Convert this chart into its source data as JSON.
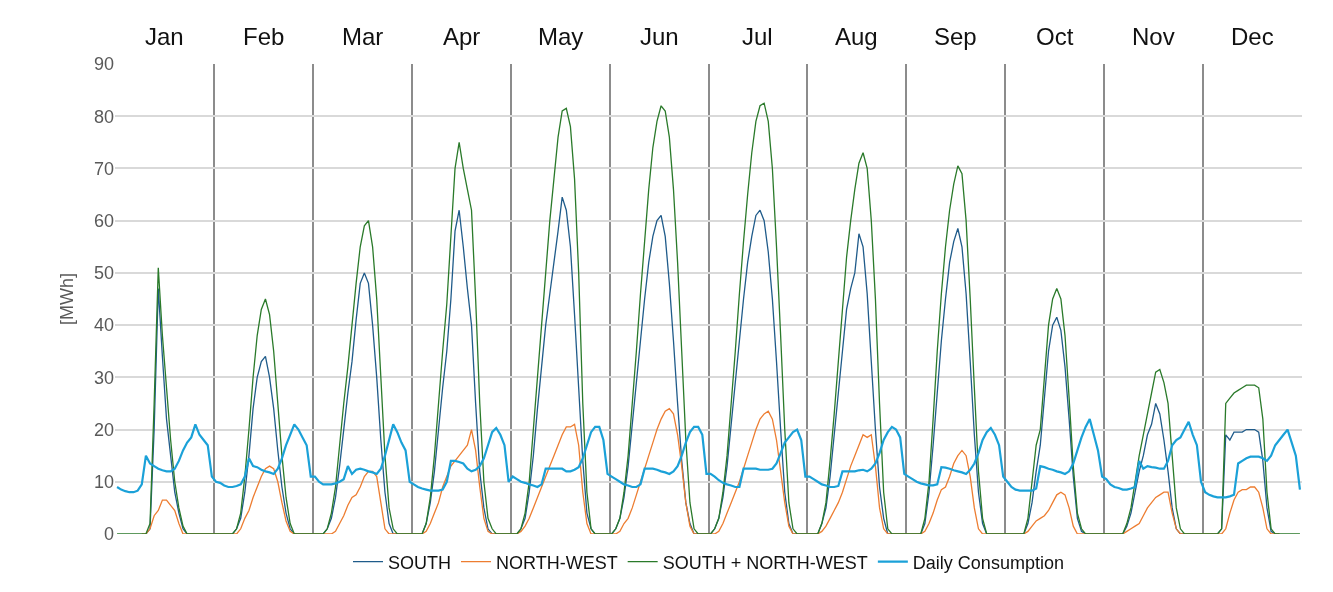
{
  "chart_data": {
    "type": "line",
    "ylabel": "[MWh]",
    "annotations": [
      "Jan",
      "Feb",
      "Mar",
      "Apr",
      "May",
      "Jun",
      "Jul",
      "Aug",
      "Sep",
      "Oct",
      "Nov",
      "Dec"
    ],
    "categories": [
      null,
      null,
      null,
      null,
      null,
      null,
      null,
      null,
      null,
      null,
      null,
      null,
      null,
      null,
      null,
      null,
      null,
      null,
      null,
      null,
      null,
      null,
      null,
      null,
      null,
      null,
      null,
      null,
      null,
      null,
      null,
      null,
      null,
      null,
      null,
      null,
      null,
      null,
      null,
      null,
      null,
      null,
      null,
      null,
      null,
      null,
      null,
      null,
      null,
      null,
      null,
      null,
      null,
      null,
      null,
      null,
      null,
      null,
      null,
      null,
      null,
      null,
      null,
      null,
      null,
      null,
      null,
      null,
      null,
      null,
      null,
      null,
      null,
      null,
      null,
      null,
      null,
      null,
      null,
      null,
      null,
      null,
      null,
      null,
      null,
      null,
      null,
      null,
      null,
      null,
      null,
      null,
      null,
      null,
      null,
      null,
      null,
      null,
      null,
      null,
      null,
      null,
      null,
      null,
      null,
      null,
      null,
      null,
      null,
      null,
      null,
      null,
      null,
      null,
      null,
      null,
      null,
      null,
      null,
      null,
      null,
      null,
      null,
      null,
      null,
      null,
      null,
      null,
      null,
      null,
      null,
      null,
      null,
      null,
      null,
      null,
      null,
      null,
      null,
      null,
      null,
      null,
      null,
      null,
      null,
      null,
      null,
      null,
      null,
      null,
      null,
      null,
      null,
      null,
      null,
      null,
      null,
      null,
      null,
      null,
      null,
      null,
      null,
      null,
      null,
      null,
      null,
      null,
      null,
      null,
      null,
      null,
      null,
      null,
      null,
      null,
      null,
      null,
      null,
      null,
      null,
      null,
      null,
      null,
      null,
      null,
      null,
      null,
      null,
      null,
      null,
      null,
      null,
      null,
      null,
      null,
      null,
      null,
      null,
      null,
      null,
      null,
      null,
      null,
      null,
      null,
      null,
      null,
      null,
      null,
      null,
      null,
      null,
      null,
      null,
      null,
      null,
      null,
      null,
      null,
      null,
      null,
      null,
      null,
      null,
      null,
      null,
      null,
      null,
      null,
      null,
      null,
      null,
      null,
      null,
      null,
      null,
      null,
      null,
      null,
      null,
      null,
      null,
      null,
      null,
      null,
      null,
      null,
      null,
      null,
      null,
      null,
      null,
      null,
      null,
      null,
      null,
      null,
      null,
      null,
      null,
      null,
      null,
      null,
      null,
      null,
      null,
      null,
      null,
      null,
      null,
      null,
      null,
      null,
      null,
      null,
      null,
      null,
      null,
      null,
      null,
      null,
      null,
      null,
      null,
      null,
      null,
      null
    ],
    "ylim": [
      0,
      90
    ],
    "yticks": [
      0,
      10,
      20,
      30,
      40,
      50,
      60,
      70,
      80,
      90
    ],
    "tick_labels": "y",
    "grid": true,
    "legend": "bottom",
    "marker": "none",
    "line_style": "solid",
    "series": [
      {
        "name": "SOUTH",
        "color": "#1f5b8a",
        "values": [
          null,
          null,
          null,
          null,
          null,
          null,
          null,
          0,
          1,
          20,
          47,
          34,
          22,
          15,
          8,
          4,
          1,
          0,
          0,
          0,
          0,
          0,
          0,
          0,
          0,
          0,
          0,
          0,
          0,
          1,
          3,
          8,
          15,
          24,
          30,
          33,
          34,
          30,
          24,
          16,
          9,
          4,
          1,
          0,
          0,
          0,
          0,
          0,
          0,
          0,
          0,
          1,
          3,
          7,
          13,
          20,
          27,
          33,
          41,
          48,
          50,
          48,
          40,
          30,
          18,
          8,
          2,
          0,
          0,
          0,
          0,
          0,
          0,
          0,
          0,
          2,
          6,
          12,
          20,
          28,
          35,
          45,
          58,
          62,
          55,
          47,
          40,
          25,
          12,
          5,
          1,
          0,
          0,
          0,
          0,
          0,
          0,
          0,
          1,
          3,
          8,
          15,
          24,
          32,
          40,
          46,
          52,
          58,
          64.5,
          62,
          55,
          42,
          28,
          14,
          4,
          1,
          0,
          0,
          0,
          0,
          0,
          1,
          3,
          7,
          13,
          21,
          29,
          37,
          45,
          52,
          57,
          60,
          61,
          57,
          48,
          37,
          25,
          14,
          6,
          2,
          0,
          0,
          0,
          0,
          0,
          1,
          3,
          7,
          13,
          21,
          29,
          37,
          45,
          52,
          57,
          61,
          62,
          60,
          54,
          45,
          33,
          20,
          8,
          2,
          0,
          0,
          0,
          0,
          0,
          0,
          0,
          2,
          5,
          11,
          19,
          27,
          35,
          43,
          47,
          50,
          57.5,
          55,
          46,
          33,
          20,
          9,
          3,
          0,
          0,
          0,
          0,
          0,
          0,
          0,
          0,
          0,
          2,
          8,
          17,
          27,
          37,
          45,
          52,
          56,
          58.5,
          55,
          46,
          33,
          19,
          8,
          2,
          0,
          0,
          0,
          0,
          0,
          0,
          0,
          0,
          0,
          0,
          2,
          6,
          12,
          17,
          26,
          35,
          40,
          41.5,
          39,
          32,
          22,
          11,
          3,
          0.5,
          0,
          0,
          0,
          0,
          0,
          0,
          0,
          0,
          0,
          0,
          1.5,
          4,
          8,
          12,
          15,
          19,
          21,
          25,
          23,
          18,
          12,
          5,
          1,
          0,
          0,
          0,
          0,
          0,
          0,
          0,
          0,
          0,
          0,
          1,
          19,
          18,
          19.5,
          19.5,
          19.5,
          20,
          20,
          20,
          19.5,
          14,
          5,
          0.5,
          0,
          0,
          null,
          null,
          null,
          null,
          null
        ]
      },
      {
        "name": "NORTH-WEST",
        "color": "#ed7d31",
        "values": [
          null,
          null,
          null,
          null,
          null,
          null,
          0,
          0,
          1,
          3.5,
          4.5,
          6.5,
          6.5,
          5.5,
          4.5,
          2,
          0,
          0,
          0,
          0,
          0,
          0,
          0,
          0,
          0,
          0,
          0,
          0,
          0,
          0,
          1,
          3,
          4.5,
          7,
          9,
          11,
          12.5,
          13,
          12.5,
          10,
          6,
          2.5,
          0.5,
          0,
          0,
          0,
          0,
          0,
          0,
          0,
          0,
          0,
          0,
          0.5,
          2,
          3.5,
          5.5,
          7,
          7.5,
          9,
          11,
          12,
          12,
          11,
          6,
          1,
          0,
          0,
          0,
          0,
          0,
          0,
          0,
          0,
          0,
          0.5,
          2,
          4,
          6,
          9,
          11,
          13,
          14,
          15,
          16,
          17,
          20,
          16,
          9,
          3,
          0.5,
          0,
          0,
          0,
          0,
          0,
          0,
          0,
          0.5,
          1.5,
          3,
          5,
          7,
          9,
          11,
          13,
          15,
          17,
          19,
          20.5,
          20.5,
          21,
          17,
          8,
          2,
          0,
          0,
          0,
          0,
          0,
          0,
          0,
          0.5,
          2,
          3,
          5,
          7.5,
          10,
          12.5,
          15,
          17.5,
          20,
          22,
          23.5,
          24,
          23,
          19,
          13,
          6,
          1.5,
          0,
          0,
          0,
          0,
          0,
          0,
          0.5,
          2,
          4,
          6,
          8,
          10,
          12.5,
          15,
          17.5,
          20,
          22,
          23,
          23.5,
          22,
          18,
          12,
          6,
          1.5,
          0,
          0,
          0,
          0,
          0,
          0,
          0,
          0.5,
          1.5,
          3,
          4.5,
          6,
          8,
          10.5,
          13,
          15,
          17,
          19,
          18.5,
          19,
          13,
          5,
          1,
          0,
          0,
          0,
          0,
          0,
          0,
          0,
          0,
          0,
          0.5,
          2,
          4,
          6.5,
          8.5,
          9,
          11,
          13.5,
          15,
          16,
          15,
          11,
          5,
          1,
          0,
          0,
          0,
          0,
          0,
          0,
          0,
          0,
          0,
          0,
          0,
          0.5,
          1.5,
          2.5,
          3,
          3.5,
          4.5,
          6,
          7.5,
          8,
          7.5,
          5,
          1.5,
          0,
          0,
          0,
          0,
          0,
          0,
          0,
          0,
          0,
          0,
          0,
          0,
          0.5,
          1,
          1.5,
          2,
          3.5,
          5,
          6,
          7,
          7.5,
          8,
          8,
          4,
          1,
          0,
          0,
          0,
          0,
          0,
          0,
          0,
          0,
          0,
          0,
          0,
          1,
          4,
          6.5,
          8,
          8.5,
          8.5,
          9,
          9,
          8,
          5,
          1,
          0,
          0,
          0,
          null,
          null,
          null,
          null,
          null
        ]
      },
      {
        "name": "SOUTH + NORTH-WEST",
        "color": "#2a7a2a",
        "values": [
          0,
          0,
          0,
          0,
          0,
          0,
          0,
          0,
          2,
          25,
          51,
          38,
          28,
          18,
          10,
          5,
          1.5,
          0,
          0,
          0,
          0,
          0,
          0,
          0,
          0,
          0,
          0,
          0,
          0,
          1,
          4,
          11,
          20,
          30,
          38,
          43,
          45,
          42,
          35,
          25,
          15,
          7,
          2,
          0,
          0,
          0,
          0,
          0,
          0,
          0,
          0,
          1,
          4,
          9,
          17,
          25,
          32,
          40,
          48,
          55,
          59,
          60,
          55,
          45,
          30,
          15,
          5,
          1,
          0,
          0,
          0,
          0,
          0,
          0,
          0,
          2,
          7,
          15,
          25,
          35,
          44,
          57,
          70,
          75,
          70,
          66,
          62,
          45,
          25,
          10,
          3,
          1,
          0,
          0,
          0,
          0,
          0,
          0,
          1,
          4,
          10,
          20,
          30,
          40,
          50,
          60,
          68,
          76,
          81,
          81.5,
          78,
          68,
          50,
          25,
          8,
          1,
          0,
          0,
          0,
          0,
          0,
          1,
          3,
          8,
          15,
          25,
          35,
          46,
          56,
          66,
          74,
          79,
          82,
          81,
          76,
          66,
          52,
          35,
          18,
          6,
          1,
          0,
          0,
          0,
          0,
          1,
          3,
          8,
          15,
          25,
          35,
          46,
          56,
          65,
          73,
          79,
          82,
          82.5,
          79,
          70,
          55,
          38,
          20,
          6,
          1,
          0,
          0,
          0,
          0,
          0,
          0,
          2,
          6,
          14,
          23,
          33,
          43,
          53,
          60,
          66,
          71,
          73,
          70,
          60,
          45,
          25,
          8,
          1,
          0,
          0,
          0,
          0,
          0,
          0,
          0,
          0,
          3,
          10,
          22,
          35,
          46,
          55,
          62,
          67,
          70.5,
          69,
          60,
          45,
          28,
          12,
          3,
          0,
          0,
          0,
          0,
          0,
          0,
          0,
          0,
          0,
          0,
          3,
          10,
          17,
          20,
          30,
          40,
          45,
          47,
          45,
          38,
          26,
          13,
          4,
          1,
          0,
          0,
          0,
          0,
          0,
          0,
          0,
          0,
          0,
          0,
          2,
          5,
          10,
          15,
          19,
          23,
          27,
          31,
          31.5,
          29,
          25,
          15,
          5,
          1,
          0,
          0,
          0,
          0,
          0,
          0,
          0,
          0,
          0,
          1,
          25,
          26,
          27,
          27.5,
          28,
          28.5,
          28.5,
          28.5,
          28,
          22,
          8,
          1,
          0,
          0,
          0,
          0,
          0,
          0,
          0
        ]
      },
      {
        "name": "Daily Consumption",
        "color": "#1ba1d8",
        "values": [
          9,
          8.5,
          8.2,
          8,
          8,
          8.3,
          9.5,
          15,
          13.5,
          13,
          12.5,
          12.2,
          12,
          12,
          12.5,
          14,
          16,
          17.5,
          18.5,
          21,
          19,
          18,
          17,
          11,
          10,
          9.8,
          9.3,
          9,
          9,
          9.2,
          9.5,
          11,
          14.5,
          13,
          12.8,
          12.3,
          12,
          11.8,
          11.5,
          12.5,
          14.5,
          17,
          19,
          21,
          20,
          18.5,
          17,
          11,
          11,
          10,
          9.5,
          9.5,
          9.5,
          9.7,
          10,
          10.5,
          13,
          11.5,
          12.3,
          12.5,
          12.3,
          12,
          11.8,
          11.5,
          12.5,
          15,
          18,
          21,
          19.5,
          17.5,
          16,
          10,
          9.5,
          9,
          8.7,
          8.5,
          8.3,
          8.3,
          8.3,
          8.5,
          10,
          14,
          14,
          13.8,
          13.5,
          12.5,
          12,
          12.3,
          13,
          14.5,
          17,
          19.5,
          20.3,
          19,
          17,
          10,
          11,
          10.5,
          10,
          9.8,
          9.5,
          9.3,
          9,
          9.5,
          12.5,
          12.5,
          12.5,
          12.5,
          12.5,
          12,
          12,
          12.3,
          12.8,
          14.5,
          17,
          19.5,
          20.5,
          20.5,
          18,
          11.5,
          11,
          10.5,
          10,
          9.5,
          9.3,
          9,
          9,
          9.5,
          12.5,
          12.5,
          12.5,
          12.3,
          12,
          11.8,
          11.5,
          12,
          13,
          15,
          17.5,
          19.5,
          20.5,
          20.5,
          19,
          11.5,
          11.5,
          11,
          10.3,
          9.8,
          9.5,
          9.3,
          9,
          9,
          12.5,
          12.5,
          12.5,
          12.5,
          12.3,
          12.3,
          12.3,
          12.5,
          13.5,
          15.5,
          17.5,
          18.5,
          19.5,
          20,
          18,
          11,
          11,
          10.5,
          10,
          9.5,
          9.3,
          9,
          9,
          9.2,
          12,
          12,
          12,
          12,
          12.2,
          12.3,
          12,
          12.5,
          13.5,
          15.5,
          18,
          19.5,
          20.5,
          20,
          18.5,
          11.5,
          11,
          10.5,
          10,
          9.7,
          9.5,
          9.3,
          9.3,
          9.5,
          12.8,
          12.7,
          12.5,
          12.2,
          12,
          11.8,
          11.5,
          12.3,
          13.5,
          15.5,
          18,
          19.5,
          20.3,
          19,
          17,
          11,
          10,
          9,
          8.5,
          8.3,
          8.3,
          8.3,
          8.3,
          8.7,
          13,
          12.8,
          12.5,
          12.3,
          12,
          11.8,
          11.5,
          12,
          13.5,
          16,
          18.5,
          20.5,
          22,
          19,
          16,
          11,
          10.5,
          9.5,
          9,
          8.8,
          8.5,
          8.5,
          8.7,
          9,
          14,
          12.5,
          13,
          12.8,
          12.7,
          12.5,
          12.5,
          14,
          17,
          18,
          18.5,
          20,
          21.5,
          19,
          17,
          10,
          8,
          7.5,
          7.2,
          7,
          7,
          7,
          7.2,
          7.5,
          13.5,
          14,
          14.5,
          14.8,
          14.8,
          14.8,
          14.5,
          14,
          15,
          17,
          18,
          19,
          20,
          17.5,
          15,
          8.5
        ]
      }
    ]
  }
}
